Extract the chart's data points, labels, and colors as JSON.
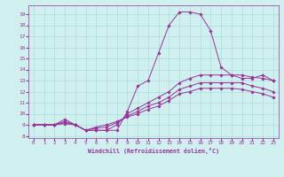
{
  "xlabel": "Windchill (Refroidissement éolien,°C)",
  "bg_color": "#cff0ee",
  "line_color": "#993399",
  "grid_color": "#aadddd",
  "xlim": [
    -0.5,
    23.5
  ],
  "ylim": [
    7.8,
    19.8
  ],
  "yticks": [
    8,
    9,
    10,
    11,
    12,
    13,
    14,
    15,
    16,
    17,
    18,
    19
  ],
  "xticks": [
    0,
    1,
    2,
    3,
    4,
    5,
    6,
    7,
    8,
    9,
    10,
    11,
    12,
    13,
    14,
    15,
    16,
    17,
    18,
    19,
    20,
    21,
    22,
    23
  ],
  "series": [
    [
      9.0,
      9.0,
      9.0,
      9.5,
      9.0,
      8.5,
      8.5,
      8.5,
      8.5,
      10.2,
      12.5,
      13.0,
      15.5,
      18.0,
      19.2,
      19.2,
      19.0,
      17.5,
      14.2,
      13.5,
      13.2,
      13.2,
      13.5,
      13.0
    ],
    [
      9.0,
      9.0,
      9.0,
      9.3,
      9.0,
      8.5,
      8.5,
      8.5,
      9.0,
      10.0,
      10.5,
      11.0,
      11.5,
      12.0,
      12.8,
      13.2,
      13.5,
      13.5,
      13.5,
      13.5,
      13.5,
      13.3,
      13.2,
      13.0
    ],
    [
      9.0,
      9.0,
      9.0,
      9.2,
      9.0,
      8.5,
      8.7,
      8.8,
      9.2,
      9.8,
      10.2,
      10.7,
      11.0,
      11.5,
      12.2,
      12.5,
      12.8,
      12.8,
      12.8,
      12.8,
      12.8,
      12.5,
      12.3,
      12.0
    ],
    [
      9.0,
      9.0,
      9.0,
      9.1,
      9.0,
      8.5,
      8.8,
      9.0,
      9.3,
      9.7,
      10.0,
      10.4,
      10.7,
      11.2,
      11.8,
      12.0,
      12.3,
      12.3,
      12.3,
      12.3,
      12.2,
      12.0,
      11.8,
      11.5
    ]
  ]
}
